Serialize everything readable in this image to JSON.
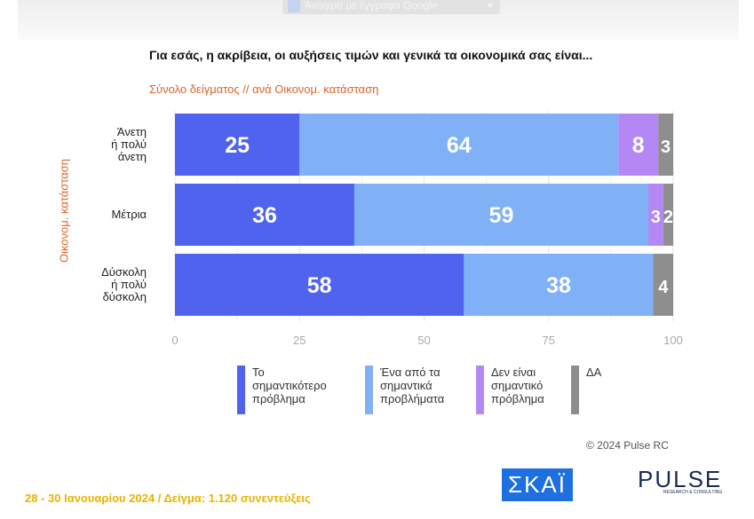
{
  "toolbar": {
    "open_with_label": "Άνοιγμα με έγγραφα Google",
    "dropdown_icon": "▾"
  },
  "chart_data": {
    "type": "bar",
    "orientation": "horizontal",
    "stacked": true,
    "title": "Για εσάς, η ακρίβεια, οι αυξήσεις τιμών και γενικά τα οικονομικά σας είναι...",
    "subtitle": "Σύνολο δείγματος // ανά Οικονομ. κατάσταση",
    "ylabel": "Οικονομ. κατάσταση",
    "categories": [
      "Άνετη ή πολύ άνετη",
      "Μέτρια",
      "Δύσκολη ή πολύ δύσκολη"
    ],
    "category_lines": [
      [
        "Άνετη",
        "ή πολύ",
        "άνετη"
      ],
      [
        "Μέτρια"
      ],
      [
        "Δύσκολη",
        "ή πολύ",
        "δύσκολη"
      ]
    ],
    "series": [
      {
        "name": "Το σημαντικότερο πρόβλημα",
        "name_lines": [
          "Το",
          "σημαντικότερο",
          "πρόβλημα"
        ],
        "color": "#4f63ef",
        "values": [
          25,
          36,
          58
        ]
      },
      {
        "name": "Ένα από τα σημαντικά προβλήματα",
        "name_lines": [
          "Ένα από τα",
          "σημαντικά",
          "προβλήματα"
        ],
        "color": "#80b1f6",
        "values": [
          64,
          59,
          38
        ]
      },
      {
        "name": "Δεν είναι σημαντικό πρόβλημα",
        "name_lines": [
          "Δεν είναι",
          "σημαντικό",
          "πρόβλημα"
        ],
        "color": "#b387f4",
        "values": [
          8,
          3,
          0
        ]
      },
      {
        "name": "ΔΑ",
        "name_lines": [
          "ΔΑ"
        ],
        "color": "#8e8e8e",
        "values": [
          3,
          2,
          4
        ]
      }
    ],
    "xlim": [
      0,
      100
    ],
    "xticks": [
      0,
      25,
      50,
      75,
      100
    ],
    "grid": true,
    "legend": "bottom"
  },
  "copyright": "© 2024 Pulse RC",
  "footer": "28 - 30 Ιανουαρίου 2024 / Δείγμα: 1.120 συνεντεύξεις",
  "logos": {
    "skai": "ΣΚΑΪ",
    "pulse": "PULSE",
    "pulse_sub": "RESEARCH & CONSULTING"
  }
}
